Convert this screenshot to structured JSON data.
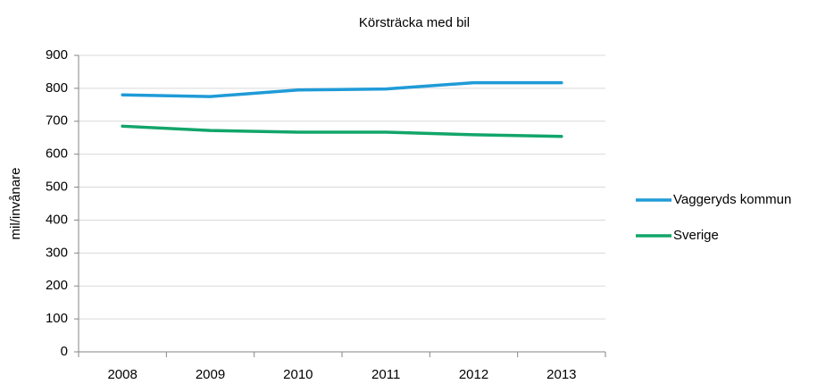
{
  "chart_data": {
    "type": "line",
    "title": "Körsträcka med bil",
    "y_label": "mil/invånare",
    "categories": [
      "2008",
      "2009",
      "2010",
      "2011",
      "2012",
      "2013"
    ],
    "series": [
      {
        "name": "Vaggeryds kommun",
        "color": "#1f9bd7",
        "values": [
          780,
          775,
          795,
          798,
          817,
          817
        ]
      },
      {
        "name": "Sverige",
        "color": "#12a56a",
        "values": [
          685,
          672,
          667,
          667,
          659,
          654
        ]
      }
    ],
    "ylim": [
      0,
      900
    ],
    "yticks": [
      0,
      100,
      200,
      300,
      400,
      500,
      600,
      700,
      800,
      900
    ],
    "grid": true,
    "legend": "right"
  }
}
